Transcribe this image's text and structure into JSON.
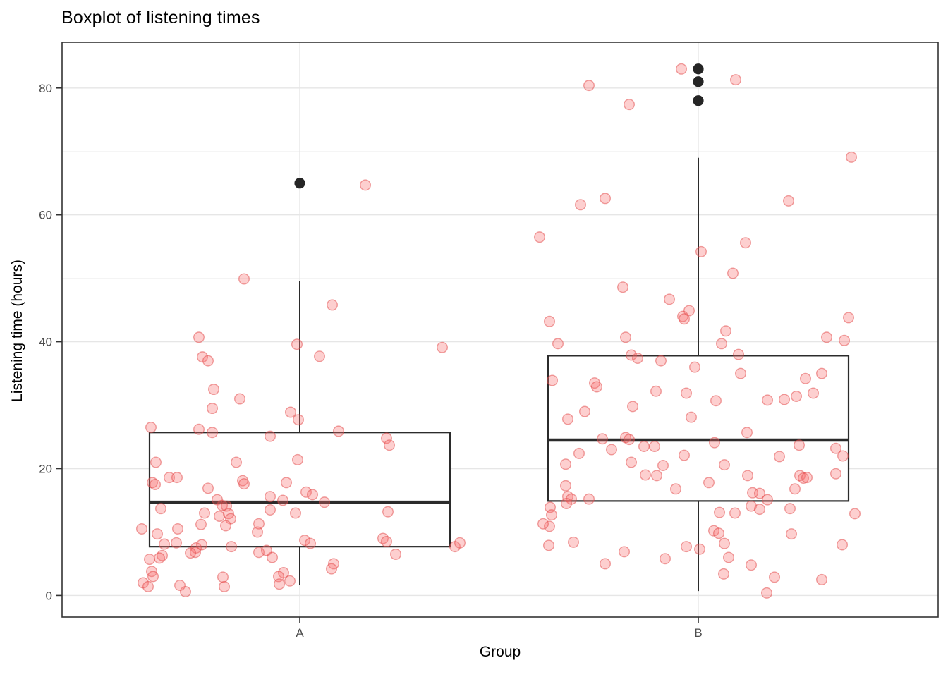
{
  "figure": {
    "title": "Boxplot of listening times"
  },
  "chart_data": {
    "type": "boxplot",
    "title": "Boxplot of listening times",
    "xlabel": "Group",
    "ylabel": "Listening time (hours)",
    "categories": [
      "A",
      "B"
    ],
    "y_major_ticks": [
      0,
      20,
      40,
      60,
      80
    ],
    "y_minor_gridlines": [
      10,
      30,
      50,
      70
    ],
    "ylim": [
      -3.4,
      87.2
    ],
    "grid": "major+minor",
    "legend": "none",
    "point_style": "jittered, semi-transparent red, ~100 per group",
    "colors": {
      "panel_background": "#ffffff",
      "panel_border": "#333333",
      "grid_major": "#e6e6e6",
      "grid_minor": "#f2f2f2",
      "box_stroke": "#2b2b2b",
      "box_fill": "#ffffff",
      "point_fill": "rgba(250,110,110,0.33)",
      "point_stroke": "rgba(225,70,70,0.5)",
      "outlier_fill": "#252525",
      "tick_label": "#4d4d4d",
      "axis_title": "#000000",
      "title": "#000000"
    },
    "groups": [
      {
        "label": "A",
        "stats": {
          "whisker_min": 1.6,
          "q1": 7.7,
          "median": 14.7,
          "q3": 25.7,
          "whisker_max": 49.6
        },
        "outliers": [
          65
        ],
        "points": [
          [
            93,
            64.7
          ],
          [
            -79,
            49.9
          ],
          [
            46,
            45.8
          ],
          [
            -143,
            40.7
          ],
          [
            -4,
            39.6
          ],
          [
            202,
            39.1
          ],
          [
            28,
            37.7
          ],
          [
            -138,
            37.6
          ],
          [
            -130,
            37
          ],
          [
            -122,
            32.5
          ],
          [
            -85,
            31
          ],
          [
            -124,
            29.5
          ],
          [
            -13,
            28.9
          ],
          [
            -2,
            27.7
          ],
          [
            -211,
            26.5
          ],
          [
            -143,
            26.2
          ],
          [
            -124,
            25.7
          ],
          [
            -42,
            25.1
          ],
          [
            55,
            25.9
          ],
          [
            123,
            24.8
          ],
          [
            127,
            23.7
          ],
          [
            -204,
            21
          ],
          [
            -90,
            21
          ],
          [
            -3,
            21.4
          ],
          [
            -185,
            18.6
          ],
          [
            -174,
            18.6
          ],
          [
            -209,
            17.8
          ],
          [
            -205,
            17.5
          ],
          [
            -81,
            18.1
          ],
          [
            -79,
            17.6
          ],
          [
            -130,
            16.9
          ],
          [
            -19,
            17.8
          ],
          [
            -42,
            15.6
          ],
          [
            9,
            16.3
          ],
          [
            18,
            15.9
          ],
          [
            -117,
            15.1
          ],
          [
            -110,
            14.2
          ],
          [
            -104,
            14.1
          ],
          [
            -24,
            15
          ],
          [
            35,
            14.7
          ],
          [
            -197,
            13.7
          ],
          [
            -42,
            13.5
          ],
          [
            -135,
            13
          ],
          [
            -114,
            12.5
          ],
          [
            -101,
            12.9
          ],
          [
            -6,
            13
          ],
          [
            125,
            13.2
          ],
          [
            -98,
            12.1
          ],
          [
            -58,
            11.3
          ],
          [
            -140,
            11.2
          ],
          [
            -105,
            11
          ],
          [
            -173,
            10.5
          ],
          [
            -224,
            10.5
          ],
          [
            -60,
            10
          ],
          [
            -202,
            9.7
          ],
          [
            -175,
            8.3
          ],
          [
            -192,
            8.1
          ],
          [
            -139,
            8
          ],
          [
            -147,
            7.5
          ],
          [
            7,
            8.7
          ],
          [
            15,
            8.2
          ],
          [
            118,
            9
          ],
          [
            123,
            8.5
          ],
          [
            220,
            7.7
          ],
          [
            227,
            8.3
          ],
          [
            -97,
            7.7
          ],
          [
            -148,
            6.8
          ],
          [
            -58,
            6.8
          ],
          [
            -47,
            7.1
          ],
          [
            -155,
            6.7
          ],
          [
            -195,
            6.3
          ],
          [
            -199,
            5.9
          ],
          [
            136,
            6.5
          ],
          [
            -213,
            5.7
          ],
          [
            -39,
            6
          ],
          [
            48,
            5
          ],
          [
            45,
            4.2
          ],
          [
            -23,
            3.6
          ],
          [
            -210,
            3.8
          ],
          [
            -208,
            3
          ],
          [
            -30,
            3
          ],
          [
            -109,
            2.9
          ],
          [
            -14,
            2.3
          ],
          [
            -29,
            1.8
          ],
          [
            -222,
            2
          ],
          [
            -215,
            1.4
          ],
          [
            -107,
            1.4
          ],
          [
            -162,
            0.6
          ],
          [
            -170,
            1.6
          ]
        ]
      },
      {
        "label": "B",
        "stats": {
          "whisker_min": 0.7,
          "q1": 14.9,
          "median": 24.5,
          "q3": 37.8,
          "whisker_max": 69
        },
        "outliers": [
          83,
          81,
          78
        ],
        "points": [
          [
            -24,
            83
          ],
          [
            53,
            81.3
          ],
          [
            -155,
            80.4
          ],
          [
            -98,
            77.4
          ],
          [
            217,
            69.1
          ],
          [
            -132,
            62.6
          ],
          [
            -167,
            61.6
          ],
          [
            128,
            62.2
          ],
          [
            -225,
            56.5
          ],
          [
            67,
            55.6
          ],
          [
            4,
            54.2
          ],
          [
            49,
            50.8
          ],
          [
            -107,
            48.6
          ],
          [
            -41,
            46.7
          ],
          [
            -13,
            44.9
          ],
          [
            -22,
            44
          ],
          [
            213,
            43.8
          ],
          [
            -20,
            43.6
          ],
          [
            -211,
            43.2
          ],
          [
            39,
            41.7
          ],
          [
            207,
            40.2
          ],
          [
            -103,
            40.7
          ],
          [
            182,
            40.7
          ],
          [
            33,
            39.7
          ],
          [
            -199,
            39.7
          ],
          [
            57,
            38
          ],
          [
            -95,
            37.9
          ],
          [
            -86,
            37.4
          ],
          [
            -53,
            37
          ],
          [
            -5,
            36
          ],
          [
            60,
            35
          ],
          [
            175,
            35
          ],
          [
            152,
            34.2
          ],
          [
            -207,
            33.9
          ],
          [
            -147,
            33.5
          ],
          [
            -144,
            32.9
          ],
          [
            -60,
            32.2
          ],
          [
            -17,
            31.9
          ],
          [
            163,
            31.9
          ],
          [
            122,
            30.9
          ],
          [
            139,
            31.4
          ],
          [
            25,
            30.7
          ],
          [
            98,
            30.8
          ],
          [
            -161,
            29
          ],
          [
            -93,
            29.8
          ],
          [
            -10,
            28.1
          ],
          [
            -185,
            27.8
          ],
          [
            69,
            25.7
          ],
          [
            -136,
            24.7
          ],
          [
            -103,
            24.9
          ],
          [
            -98,
            24.6
          ],
          [
            23,
            24.1
          ],
          [
            143,
            23.7
          ],
          [
            195,
            23.2
          ],
          [
            205,
            22
          ],
          [
            -77,
            23.5
          ],
          [
            -62,
            23.5
          ],
          [
            -20,
            22.1
          ],
          [
            -123,
            23
          ],
          [
            -169,
            22.4
          ],
          [
            37,
            20.6
          ],
          [
            115,
            21.9
          ],
          [
            -188,
            20.7
          ],
          [
            -95,
            21
          ],
          [
            -50,
            20.5
          ],
          [
            15,
            17.8
          ],
          [
            -75,
            19
          ],
          [
            -59,
            18.9
          ],
          [
            70,
            18.9
          ],
          [
            144,
            18.9
          ],
          [
            149,
            18.5
          ],
          [
            154,
            18.6
          ],
          [
            195,
            19.2
          ],
          [
            -188,
            17.3
          ],
          [
            -32,
            16.8
          ],
          [
            -185,
            15.6
          ],
          [
            -180,
            15.2
          ],
          [
            -155,
            15.2
          ],
          [
            137,
            16.8
          ],
          [
            77,
            16.2
          ],
          [
            87,
            16.1
          ],
          [
            98,
            15.1
          ],
          [
            -210,
            13.9
          ],
          [
            -208,
            12.7
          ],
          [
            -187,
            14.5
          ],
          [
            75,
            14.1
          ],
          [
            87,
            13.6
          ],
          [
            30,
            13.1
          ],
          [
            52,
            13
          ],
          [
            130,
            13.7
          ],
          [
            222,
            12.9
          ],
          [
            -211,
            10.9
          ],
          [
            -220,
            11.3
          ],
          [
            22,
            10.2
          ],
          [
            29,
            9.8
          ],
          [
            132,
            9.7
          ],
          [
            -17,
            7.7
          ],
          [
            -212,
            7.9
          ],
          [
            -177,
            8.4
          ],
          [
            -105,
            6.9
          ],
          [
            -132,
            5
          ],
          [
            -47,
            5.8
          ],
          [
            2,
            7.3
          ],
          [
            37,
            8.2
          ],
          [
            43,
            6
          ],
          [
            36,
            3.4
          ],
          [
            204,
            8
          ],
          [
            75,
            4.8
          ],
          [
            108,
            2.9
          ],
          [
            175,
            2.5
          ],
          [
            97,
            0.4
          ]
        ]
      }
    ]
  }
}
